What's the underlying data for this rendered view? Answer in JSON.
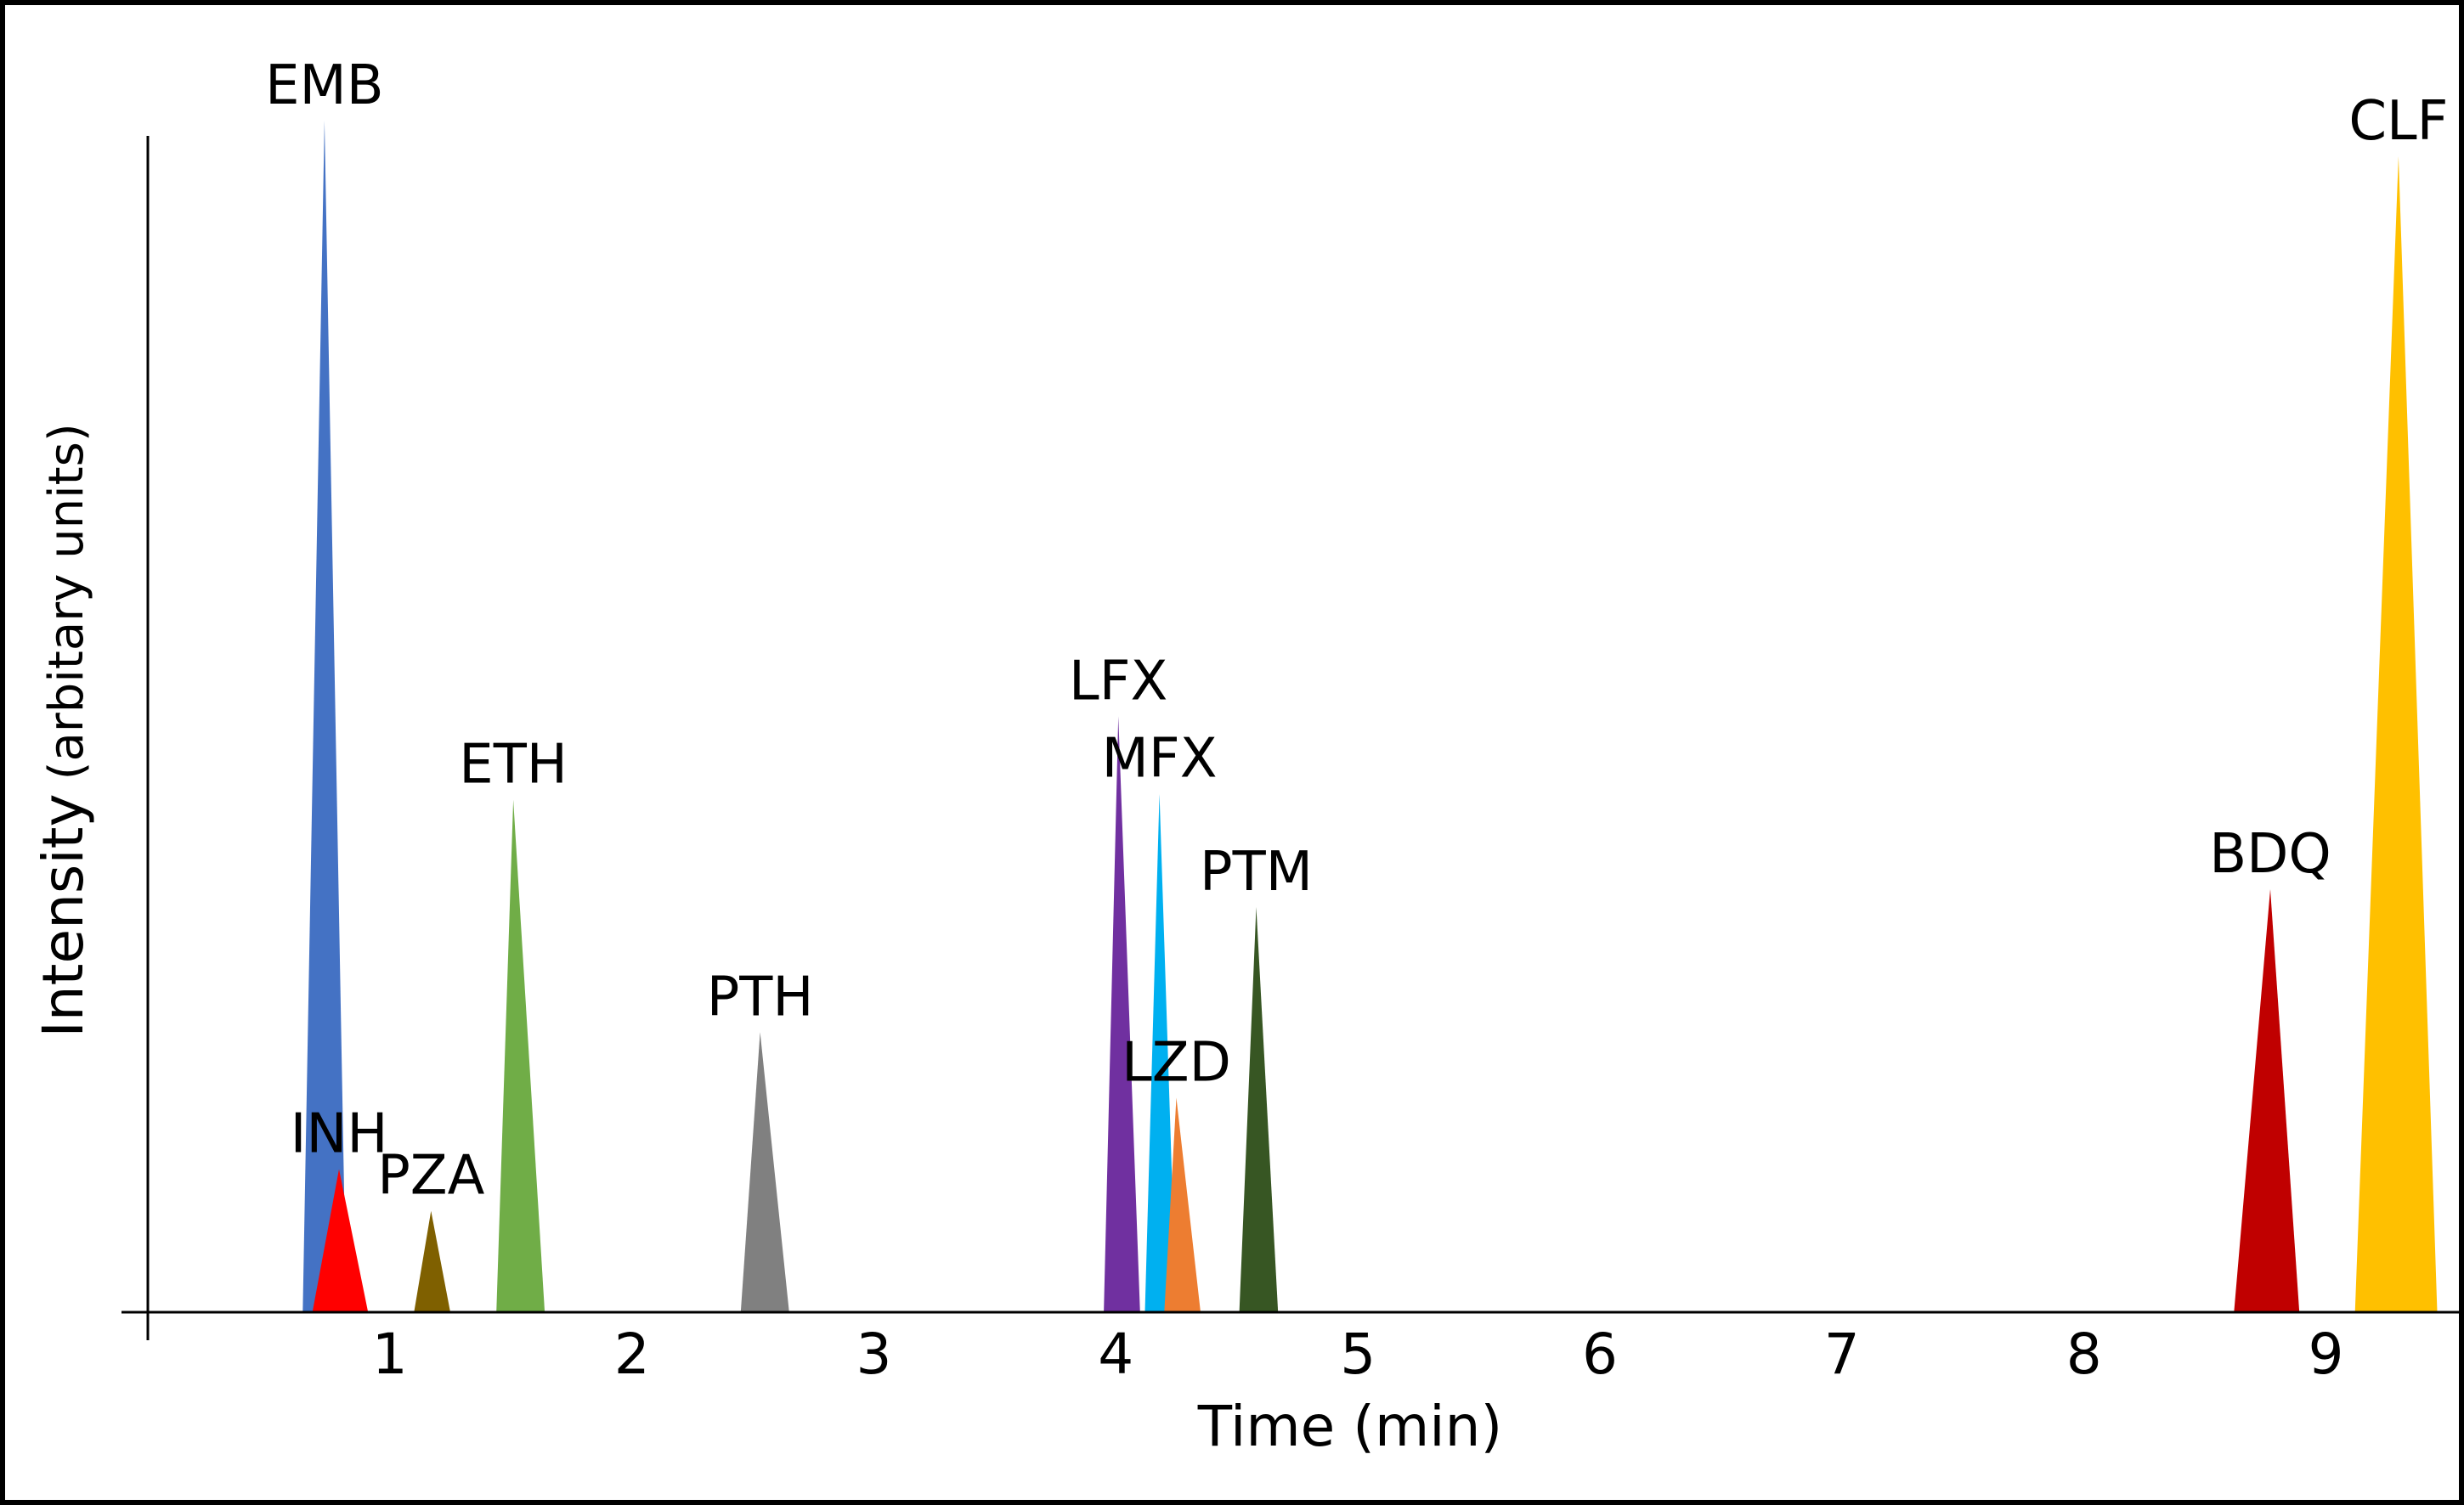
{
  "chart_data": {
    "type": "area",
    "xlabel": "Time (min)",
    "ylabel_main": "Intensity",
    "ylabel_sub": "(arbitary units)",
    "xlim": [
      0.0,
      9.56
    ],
    "ylim": [
      0,
      1000
    ],
    "xticks": [
      1,
      2,
      3,
      4,
      5,
      6,
      7,
      8,
      9
    ],
    "grid": false,
    "legend": "none",
    "peaks": [
      {
        "name": "EMB",
        "x": 0.73,
        "x_start": 0.64,
        "x_end": 0.82,
        "y": 1000,
        "color": "#4472C4"
      },
      {
        "name": "INH",
        "x": 0.79,
        "x_start": 0.68,
        "x_end": 0.91,
        "y": 120,
        "color": "#FF0000"
      },
      {
        "name": "PZA",
        "x": 1.17,
        "x_start": 1.1,
        "x_end": 1.25,
        "y": 85,
        "color": "#7F6000"
      },
      {
        "name": "ETH",
        "x": 1.51,
        "x_start": 1.44,
        "x_end": 1.64,
        "y": 430,
        "color": "#70AD47"
      },
      {
        "name": "PTH",
        "x": 2.53,
        "x_start": 2.45,
        "x_end": 2.65,
        "y": 235,
        "color": "#808080"
      },
      {
        "name": "LFX",
        "x": 4.01,
        "x_start": 3.95,
        "x_end": 4.1,
        "y": 500,
        "color": "#7030A0"
      },
      {
        "name": "MFX",
        "x": 4.18,
        "x_start": 4.12,
        "x_end": 4.25,
        "y": 435,
        "color": "#00B0F0"
      },
      {
        "name": "LZD",
        "x": 4.25,
        "x_start": 4.2,
        "x_end": 4.35,
        "y": 180,
        "color": "#ED7D31"
      },
      {
        "name": "PTM",
        "x": 4.58,
        "x_start": 4.51,
        "x_end": 4.67,
        "y": 340,
        "color": "#375623"
      },
      {
        "name": "BDQ",
        "x": 8.77,
        "x_start": 8.62,
        "x_end": 8.89,
        "y": 355,
        "color": "#C00000"
      },
      {
        "name": "CLF",
        "x": 9.3,
        "x_start": 9.12,
        "x_end": 9.46,
        "y": 970,
        "color": "#FFC000"
      }
    ]
  }
}
